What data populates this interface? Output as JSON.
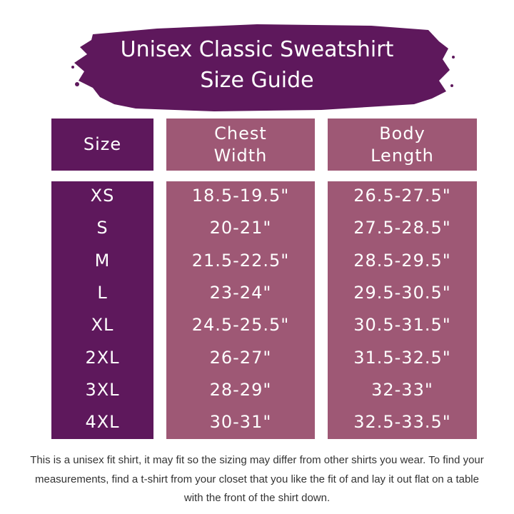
{
  "title": {
    "line1": "Unisex Classic Sweatshirt",
    "line2": "Size Guide"
  },
  "colors": {
    "dark_purple": "#5e185c",
    "mauve": "#9e5875",
    "text": "#ffffff"
  },
  "table": {
    "headers": [
      "Size",
      "Chest Width",
      "Body Length"
    ],
    "rows": [
      {
        "size": "XS",
        "chest": "18.5-19.5\"",
        "length": "26.5-27.5\""
      },
      {
        "size": "S",
        "chest": "20-21\"",
        "length": "27.5-28.5\""
      },
      {
        "size": "M",
        "chest": "21.5-22.5\"",
        "length": "28.5-29.5\""
      },
      {
        "size": "L",
        "chest": "23-24\"",
        "length": "29.5-30.5\""
      },
      {
        "size": "XL",
        "chest": "24.5-25.5\"",
        "length": "30.5-31.5\""
      },
      {
        "size": "2XL",
        "chest": "26-27\"",
        "length": "31.5-32.5\""
      },
      {
        "size": "3XL",
        "chest": "28-29\"",
        "length": "32-33\""
      },
      {
        "size": "4XL",
        "chest": "30-31\"",
        "length": "32.5-33.5\""
      }
    ]
  },
  "note": "This is a unisex fit shirt, it may fit so the sizing may differ from other shirts you wear. To find your measurements, find a t-shirt from your closet that you like the fit of and lay it out flat on a table with the front of the shirt down."
}
